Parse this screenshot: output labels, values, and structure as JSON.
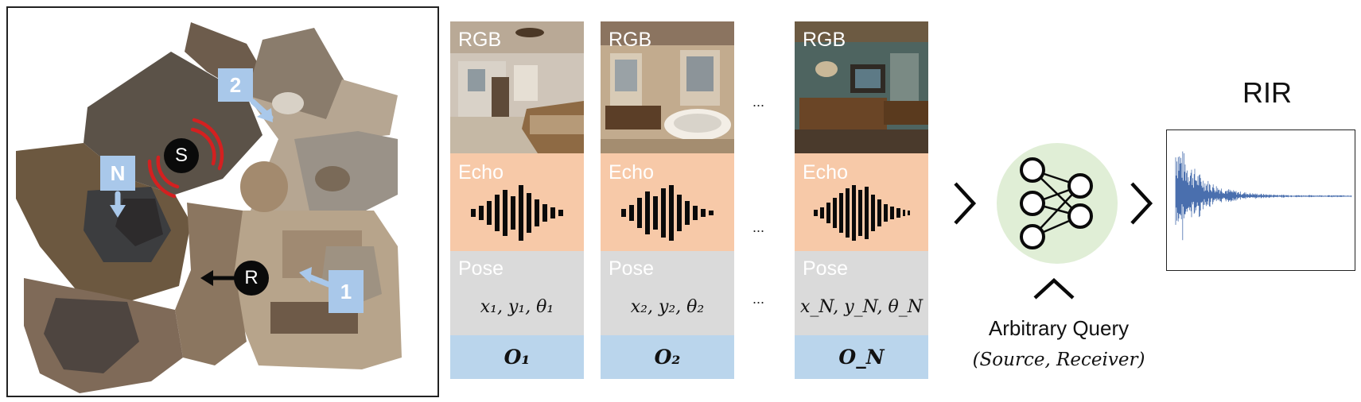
{
  "floorplan": {
    "markers": {
      "n": "N",
      "two": "2",
      "one": "1"
    },
    "source_label": "S",
    "receiver_label": "R"
  },
  "observations": [
    {
      "rgb_label": "RGB",
      "echo_label": "Echo",
      "pose_label": "Pose",
      "pose_value": "x₁, y₁, θ₁",
      "obs_label": "O₁"
    },
    {
      "rgb_label": "RGB",
      "echo_label": "Echo",
      "pose_label": "Pose",
      "pose_value": "x₂, y₂, θ₂",
      "obs_label": "O₂"
    },
    {
      "rgb_label": "RGB",
      "echo_label": "Echo",
      "pose_label": "Pose",
      "pose_value": "x_N, y_N, θ_N",
      "obs_label": "O_N"
    }
  ],
  "ellipsis": "...",
  "query": {
    "label": "Arbitrary Query",
    "sub": "(Source, Receiver)"
  },
  "rir": {
    "title": "RIR"
  },
  "colors": {
    "echo_band": "#f7c9a8",
    "pose_band": "#dadada",
    "obs_band": "#bad5ec",
    "marker_tag": "#a9c8ea",
    "network_bg": "#e0eed6",
    "waveform": "#4a6fae",
    "source_arcs": "#d42020"
  }
}
